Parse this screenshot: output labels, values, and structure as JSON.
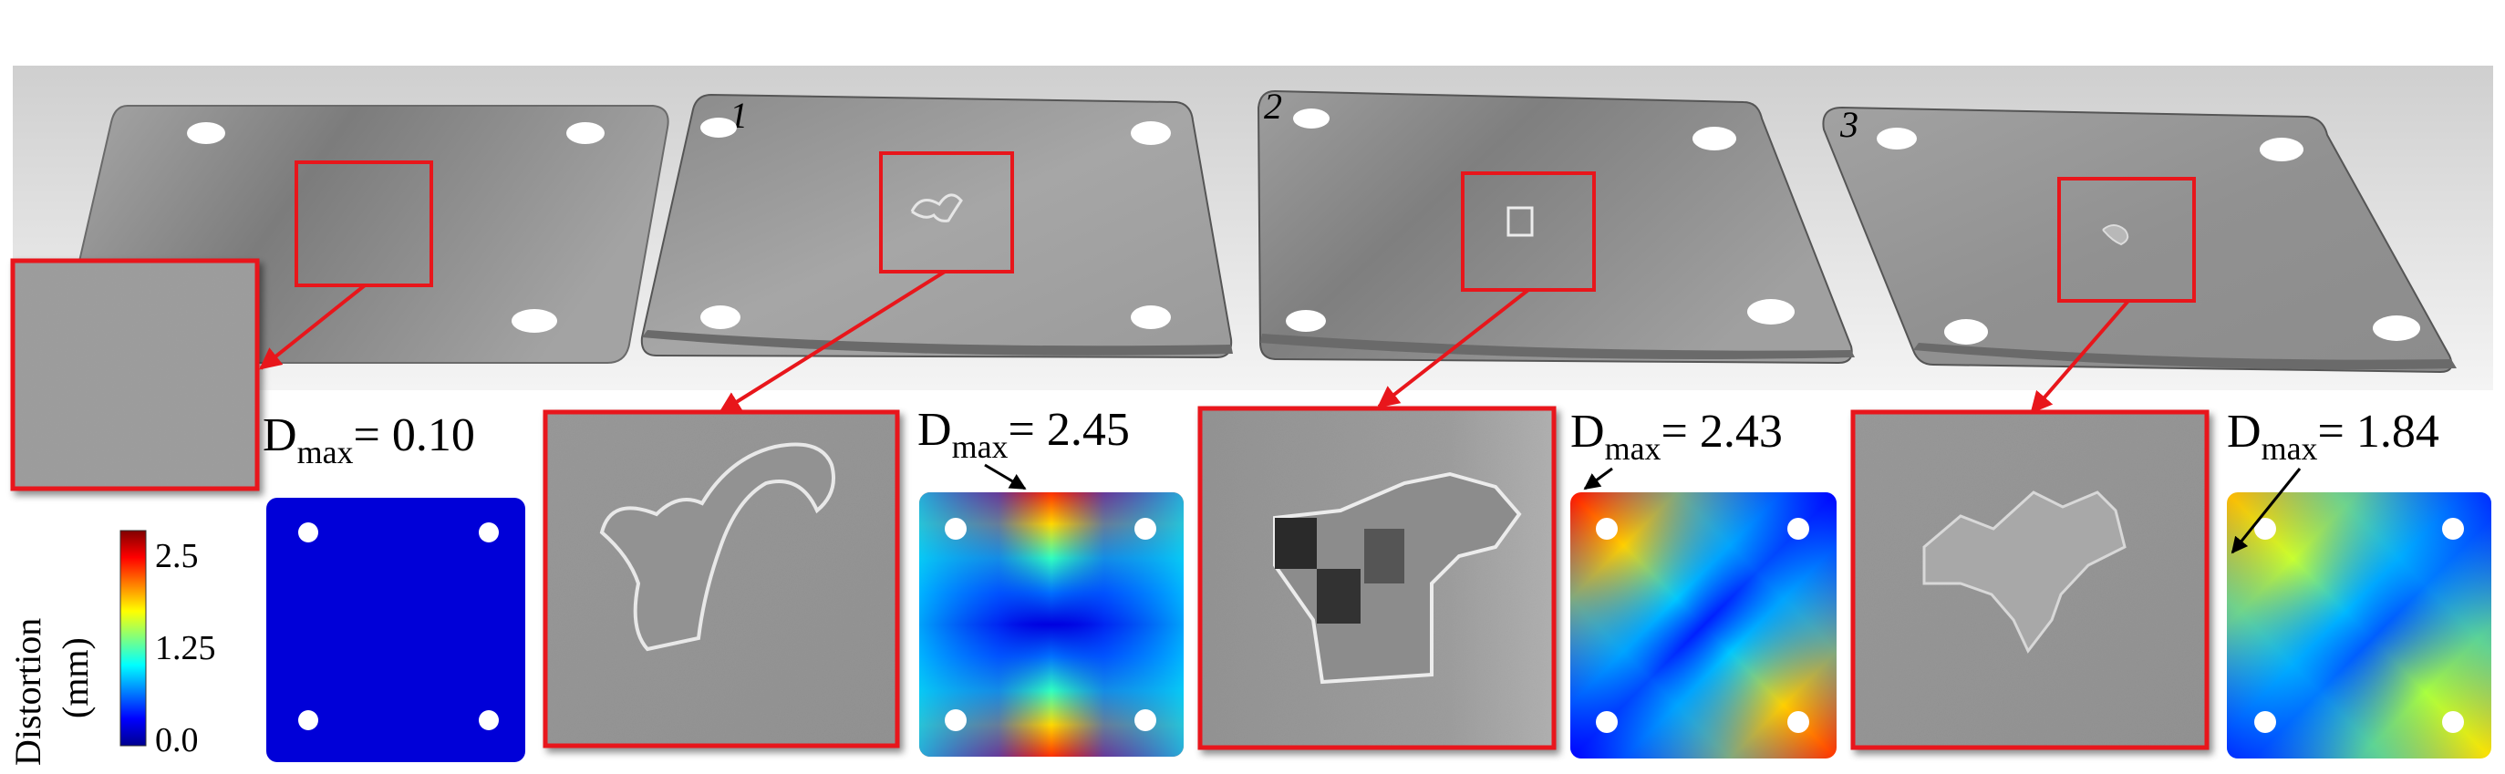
{
  "figure": {
    "panels": [
      {
        "plate_label": "",
        "dmax_symbol": "D",
        "dmax_sub": "max",
        "dmax_value": "= 0.10",
        "map": "uniform-low",
        "has_arrow": false
      },
      {
        "plate_label": "1",
        "dmax_symbol": "D",
        "dmax_sub": "max",
        "dmax_value": "= 2.45",
        "map": "saddle-corners-high",
        "has_arrow": true
      },
      {
        "plate_label": "2",
        "dmax_symbol": "D",
        "dmax_sub": "max",
        "dmax_value": "= 2.43",
        "map": "diagonal-corners-high",
        "has_arrow": true
      },
      {
        "plate_label": "3",
        "dmax_symbol": "D",
        "dmax_sub": "max",
        "dmax_value": "= 1.84",
        "map": "diagonal-corners-mid",
        "has_arrow": true
      }
    ],
    "colorbar": {
      "title_line1": "Distortion",
      "title_line2": "(mm)",
      "ticks": [
        "2.5",
        "1.25",
        "0.0"
      ],
      "min": 0.0,
      "max": 2.5,
      "colormap": "jet"
    },
    "colors": {
      "highlight_box": "#e8161b",
      "zoom_arrow": "#e8161b",
      "annotation_arrow": "#000000",
      "hole": "#ffffff"
    }
  }
}
